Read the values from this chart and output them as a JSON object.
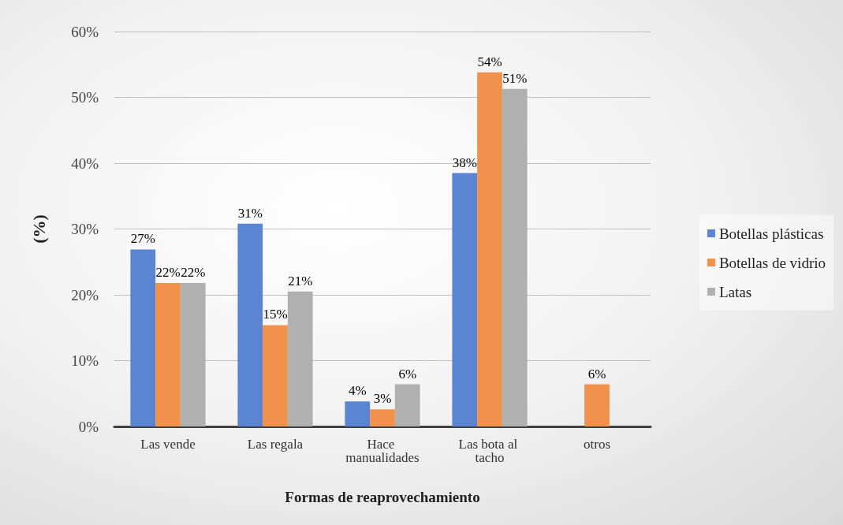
{
  "chart_data": {
    "type": "bar",
    "xlabel": "Formas de reaprovechamiento",
    "ylabel": "(%)",
    "categories": [
      "Las vende",
      "Las regala",
      "Hace manualidades",
      "Las bota al tacho",
      "otros"
    ],
    "series": [
      {
        "name": "Botellas plásticas",
        "color": "#5b85d0",
        "values": [
          26.9,
          30.8,
          3.8,
          38.5,
          null
        ],
        "value_labels": [
          "27%",
          "31%",
          "4%",
          "38%",
          null
        ]
      },
      {
        "name": "Botellas de vidrio",
        "color": "#f0914e",
        "values": [
          21.8,
          15.4,
          2.6,
          53.8,
          6.4
        ],
        "value_labels": [
          "22%",
          "15%",
          "3%",
          "54%",
          "6%"
        ]
      },
      {
        "name": "Latas",
        "color": "#b0b0b0",
        "values": [
          21.8,
          20.5,
          6.4,
          51.3,
          null
        ],
        "value_labels": [
          "22%",
          "21%",
          "6%",
          "51%",
          null
        ]
      }
    ],
    "ylim": [
      0,
      60
    ],
    "yticks": [
      {
        "value": 0,
        "label": "0%"
      },
      {
        "value": 10,
        "label": "10%"
      },
      {
        "value": 20,
        "label": "20%"
      },
      {
        "value": 30,
        "label": "30%"
      },
      {
        "value": 40,
        "label": "40%"
      },
      {
        "value": 50,
        "label": "50%"
      },
      {
        "value": 60,
        "label": "60%"
      }
    ],
    "grid": "y",
    "legend": "right"
  }
}
